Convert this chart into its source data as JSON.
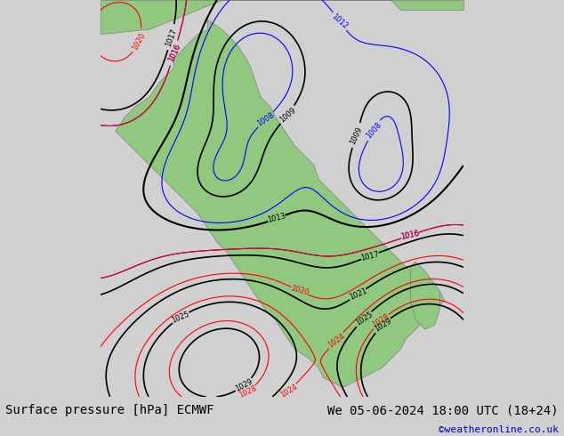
{
  "title_left": "Surface pressure [hPa] ECMWF",
  "title_right": "We 05-06-2024 18:00 UTC (18+24)",
  "copyright": "©weatheronline.co.uk",
  "bg_color": "#d0d0d0",
  "map_bg_color": "#c8c8c8",
  "land_color": "#90c880",
  "sea_color": "#b0c8e8",
  "bottom_bar_color": "#ffffff",
  "title_fontsize": 10,
  "copyright_color": "#0000cc",
  "figsize": [
    6.34,
    4.9
  ],
  "dpi": 100
}
